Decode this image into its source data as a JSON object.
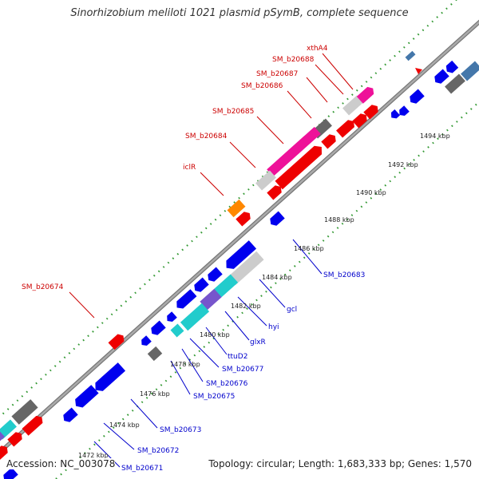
{
  "title": "Sinorhizobium meliloti 1021 plasmid pSymB, complete sequence",
  "accession": "Accession: NC_003078",
  "stats": "Topology: circular; Length: 1,683,333 bp; Genes: 1,570",
  "colors": {
    "backbone": "#999999",
    "dots": "#339933",
    "fwd_label": "#cc0000",
    "rev_label": "#0000cc",
    "red": "#ee0000",
    "blue": "#0000ee",
    "magenta": "#ee1199",
    "light_grey": "#cccccc",
    "dark_grey": "#666666",
    "cyan": "#22cccc",
    "purple": "#7755cc",
    "orange": "#ff8800",
    "steel": "#4477aa"
  },
  "ticks": [
    {
      "label": "1472 kbp"
    },
    {
      "label": "1474 kbp"
    },
    {
      "label": "1476 kbp"
    },
    {
      "label": "1478 kbp"
    },
    {
      "label": "1480 kbp"
    },
    {
      "label": "1482 kbp"
    },
    {
      "label": "1484 kbp"
    },
    {
      "label": "1486 kbp"
    },
    {
      "label": "1488 kbp"
    },
    {
      "label": "1490 kbp"
    },
    {
      "label": "1492 kbp"
    },
    {
      "label": "1494 kbp"
    }
  ],
  "fwd_labels": [
    "xthA4",
    "SM_b20688",
    "SM_b20687",
    "SM_b20686",
    "SM_b20685",
    "SM_b20684",
    "iclR",
    "SM_b20674"
  ],
  "rev_labels": [
    "SM_b20683",
    "gcl",
    "hyi",
    "glxR",
    "ttuD2",
    "SM_b20677",
    "SM_b20676",
    "SM_b20675",
    "SM_b20673",
    "SM_b20672",
    "SM_b20671"
  ]
}
